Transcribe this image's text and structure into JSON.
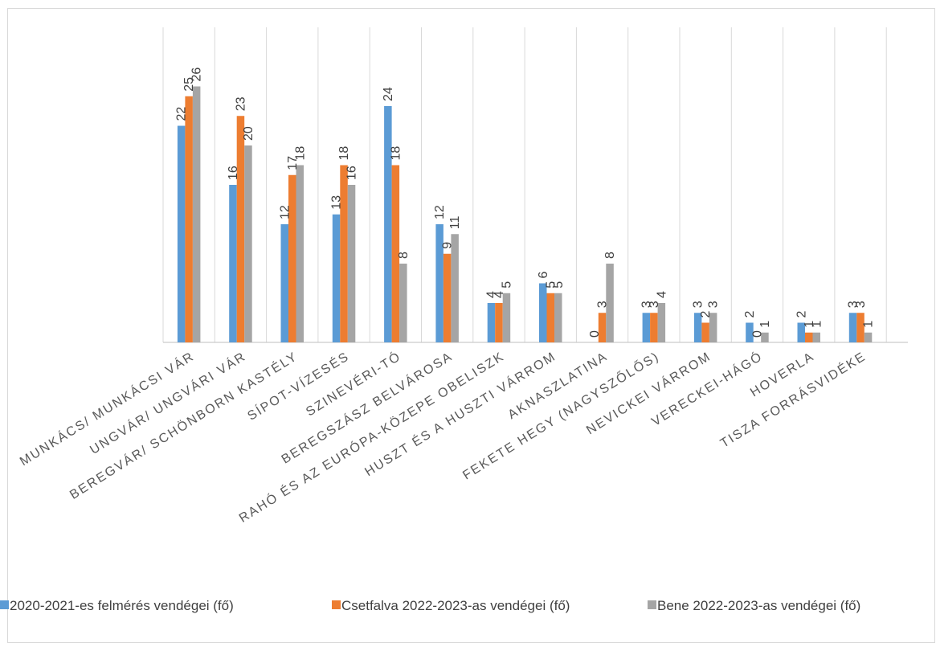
{
  "chart_data": {
    "type": "bar",
    "categories": [
      "MUNKÁCS/ MUNKÁCSI VÁR",
      "UNGVÁR/ UNGVÁRI VÁR",
      "BEREGVÁR/ SCHÖNBORN KASTÉLY",
      "SÍPOT-VÍZESÉS",
      "SZINEVÉRI-TÓ",
      "BEREGSZÁSZ BELVÁROSA",
      "RAHÓ ÉS AZ EURÓPA-KÖZEPE OBELISZK",
      "HUSZT ÉS A HUSZTI VÁRROM",
      "AKNASZLATINA",
      "FEKETE HEGY (NAGYSZŐLŐS)",
      "NEVICKEI VÁRROM",
      "VERECKEI-HÁGÓ",
      "HOVERLA",
      "TISZA FORRÁSVIDÉKE"
    ],
    "series": [
      {
        "name": "2020-2021-es felmérés vendégei (fő)",
        "color": "#5b9bd5",
        "values": [
          22,
          16,
          12,
          13,
          24,
          12,
          4,
          6,
          0,
          3,
          3,
          2,
          2,
          3
        ]
      },
      {
        "name": "Csetfalva 2022-2023-as vendégei (fő)",
        "color": "#ed7d31",
        "values": [
          25,
          23,
          17,
          18,
          18,
          9,
          4,
          5,
          3,
          3,
          2,
          0,
          1,
          3
        ]
      },
      {
        "name": "Bene 2022-2023-as vendégei (fő)",
        "color": "#a5a5a5",
        "values": [
          26,
          20,
          18,
          16,
          8,
          11,
          5,
          5,
          8,
          4,
          3,
          1,
          1,
          1
        ]
      }
    ],
    "ylim": [
      0,
      32
    ],
    "grid": "vertical",
    "legend": "bottom",
    "xlabel": "",
    "ylabel": "",
    "title": ""
  }
}
